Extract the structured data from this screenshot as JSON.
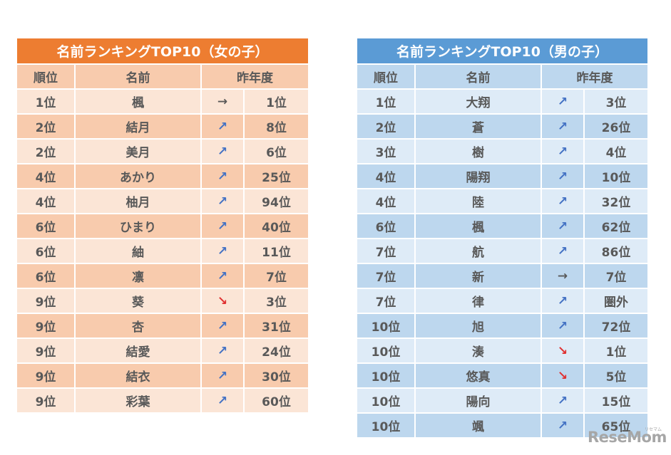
{
  "girls": {
    "title": "名前ランキングTOP10（女の子）",
    "headers": {
      "rank": "順位",
      "name": "名前",
      "last_year": "昨年度"
    },
    "rows": [
      {
        "rank": "1位",
        "name": "楓",
        "trend": "→",
        "dir": "same",
        "last": "1位"
      },
      {
        "rank": "2位",
        "name": "結月",
        "trend": "↗",
        "dir": "up",
        "last": "8位"
      },
      {
        "rank": "2位",
        "name": "美月",
        "trend": "↗",
        "dir": "up",
        "last": "6位"
      },
      {
        "rank": "4位",
        "name": "あかり",
        "trend": "↗",
        "dir": "up",
        "last": "25位"
      },
      {
        "rank": "4位",
        "name": "柚月",
        "trend": "↗",
        "dir": "up",
        "last": "94位"
      },
      {
        "rank": "6位",
        "name": "ひまり",
        "trend": "↗",
        "dir": "up",
        "last": "40位"
      },
      {
        "rank": "6位",
        "name": "紬",
        "trend": "↗",
        "dir": "up",
        "last": "11位"
      },
      {
        "rank": "6位",
        "name": "凛",
        "trend": "↗",
        "dir": "up",
        "last": "7位"
      },
      {
        "rank": "9位",
        "name": "葵",
        "trend": "↘",
        "dir": "down",
        "last": "3位"
      },
      {
        "rank": "9位",
        "name": "杏",
        "trend": "↗",
        "dir": "up",
        "last": "31位"
      },
      {
        "rank": "9位",
        "name": "結愛",
        "trend": "↗",
        "dir": "up",
        "last": "24位"
      },
      {
        "rank": "9位",
        "name": "結衣",
        "trend": "↗",
        "dir": "up",
        "last": "30位"
      },
      {
        "rank": "9位",
        "name": "彩葉",
        "trend": "↗",
        "dir": "up",
        "last": "60位"
      }
    ]
  },
  "boys": {
    "title": "名前ランキングTOP10（男の子）",
    "headers": {
      "rank": "順位",
      "name": "名前",
      "last_year": "昨年度"
    },
    "rows": [
      {
        "rank": "1位",
        "name": "大翔",
        "trend": "↗",
        "dir": "up",
        "last": "3位"
      },
      {
        "rank": "2位",
        "name": "蒼",
        "trend": "↗",
        "dir": "up",
        "last": "26位"
      },
      {
        "rank": "3位",
        "name": "樹",
        "trend": "↗",
        "dir": "up",
        "last": "4位"
      },
      {
        "rank": "4位",
        "name": "陽翔",
        "trend": "↗",
        "dir": "up",
        "last": "10位"
      },
      {
        "rank": "4位",
        "name": "陸",
        "trend": "↗",
        "dir": "up",
        "last": "32位"
      },
      {
        "rank": "6位",
        "name": "楓",
        "trend": "↗",
        "dir": "up",
        "last": "62位"
      },
      {
        "rank": "7位",
        "name": "航",
        "trend": "↗",
        "dir": "up",
        "last": "86位"
      },
      {
        "rank": "7位",
        "name": "新",
        "trend": "→",
        "dir": "same",
        "last": "7位"
      },
      {
        "rank": "7位",
        "name": "律",
        "trend": "↗",
        "dir": "up",
        "last": "圏外"
      },
      {
        "rank": "10位",
        "name": "旭",
        "trend": "↗",
        "dir": "up",
        "last": "72位"
      },
      {
        "rank": "10位",
        "name": "湊",
        "trend": "↘",
        "dir": "down",
        "last": "1位"
      },
      {
        "rank": "10位",
        "name": "悠真",
        "trend": "↘",
        "dir": "down",
        "last": "5位"
      },
      {
        "rank": "10位",
        "name": "陽向",
        "trend": "↗",
        "dir": "up",
        "last": "15位"
      },
      {
        "rank": "10位",
        "name": "颯",
        "trend": "↗",
        "dir": "up",
        "last": "65位"
      }
    ]
  },
  "logo": {
    "text": "ReseMom",
    "sub": "リセマム"
  },
  "colors": {
    "girls_title": "#ed7d31",
    "girls_dark": "#f8cbad",
    "girls_light": "#fbe5d6",
    "boys_title": "#5b9bd5",
    "boys_dark": "#bdd7ee",
    "boys_light": "#deebf7",
    "arrow_up": "#4472c4",
    "arrow_down": "#e03030"
  }
}
